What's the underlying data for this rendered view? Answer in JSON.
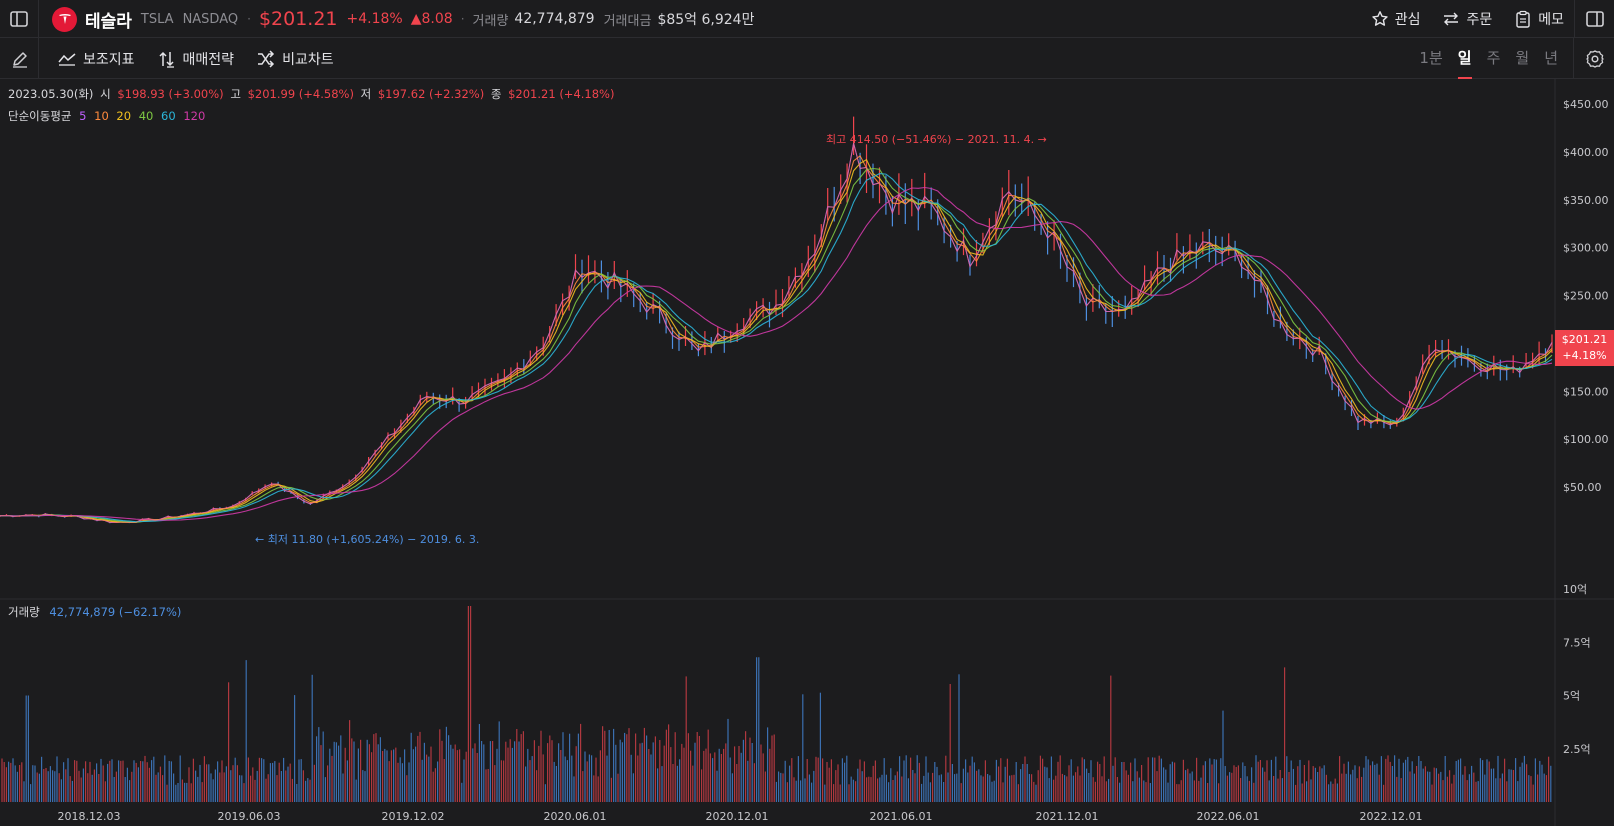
{
  "header": {
    "stock_name": "테슬라",
    "ticker": "TSLA",
    "exchange": "NASDAQ",
    "price": "$201.21",
    "change_pct": "+4.18%",
    "change_abs": "▲8.08",
    "volume_label": "거래량",
    "volume_value": "42,774,879",
    "amount_label": "거래대금",
    "amount_value": "$85억 6,924만",
    "actions": {
      "watch": "관심",
      "order": "주문",
      "memo": "메모"
    }
  },
  "toolbar": {
    "indicators": "보조지표",
    "strategy": "매매전략",
    "compare": "비교차트",
    "timeframes": [
      "1분",
      "일",
      "주",
      "월",
      "년"
    ],
    "active_timeframe": "일"
  },
  "ohlc": {
    "date": "2023.05.30(화)",
    "open_label": "시",
    "open": "$198.93 (+3.00%)",
    "high_label": "고",
    "high": "$201.99 (+4.58%)",
    "low_label": "저",
    "low": "$197.62 (+2.32%)",
    "close_label": "종",
    "close": "$201.21 (+4.18%)"
  },
  "ma_legend": {
    "label": "단순이동평균",
    "periods": [
      {
        "p": "5",
        "color": "#c060ff"
      },
      {
        "p": "10",
        "color": "#ff8a3d"
      },
      {
        "p": "20",
        "color": "#f0c020"
      },
      {
        "p": "40",
        "color": "#7ec843"
      },
      {
        "p": "60",
        "color": "#2bb6d9"
      },
      {
        "p": "120",
        "color": "#d03aa8"
      }
    ]
  },
  "annotations": {
    "high": "최고 414.50 (−51.46%) − 2021. 11. 4. →",
    "low": "← 최저 11.80 (+1,605.24%) − 2019. 6. 3."
  },
  "current_price_tag": {
    "price": "$201.21",
    "change": "+4.18%"
  },
  "volume_legend": {
    "label": "거래량",
    "value": "42,774,879 (−62.17%)"
  },
  "colors": {
    "up": "#f0444d",
    "down": "#4e8fe0",
    "bg": "#1c1c1e"
  },
  "chart_data": {
    "type": "line",
    "price_axis_ticks": [
      "$450.00",
      "$400.00",
      "$350.00",
      "$300.00",
      "$250.00",
      "$200.00",
      "$150.00",
      "$100.00",
      "$50.00"
    ],
    "volume_axis_ticks": [
      "10억",
      "7.5억",
      "5억",
      "2.5억"
    ],
    "x_ticks": [
      "2018.12.03",
      "2019.06.03",
      "2019.12.02",
      "2020.06.01",
      "2020.12.01",
      "2021.06.01",
      "2021.12.01",
      "2022.06.01",
      "2022.12.01"
    ],
    "ylim": [
      0,
      470
    ],
    "x": [
      "2018.09",
      "2018.12",
      "2019.03",
      "2019.06",
      "2019.09",
      "2019.12",
      "2020.01",
      "2020.02",
      "2020.03",
      "2020.05",
      "2020.07",
      "2020.08",
      "2020.09",
      "2020.11",
      "2020.12",
      "2021.01",
      "2021.02",
      "2021.03",
      "2021.05",
      "2021.07",
      "2021.08",
      "2021.10",
      "2021.11",
      "2021.12",
      "2022.01",
      "2022.02",
      "2022.03",
      "2022.04",
      "2022.05",
      "2022.06",
      "2022.07",
      "2022.08",
      "2022.09",
      "2022.10",
      "2022.11",
      "2022.12",
      "2023.01",
      "2023.02",
      "2023.03",
      "2023.04",
      "2023.05"
    ],
    "series": [
      {
        "values": [
          20,
          21,
          19,
          13,
          16,
          22,
          30,
          55,
          32,
          55,
          100,
          145,
          140,
          160,
          200,
          280,
          260,
          230,
          190,
          220,
          240,
          300,
          405,
          350,
          340,
          290,
          360,
          320,
          240,
          230,
          280,
          300,
          290,
          220,
          190,
          120,
          115,
          200,
          180,
          170,
          201
        ]
      }
    ],
    "high": {
      "value": 414.5,
      "date": "2021. 11. 4."
    },
    "low": {
      "value": 11.8,
      "date": "2019. 6. 3."
    }
  }
}
